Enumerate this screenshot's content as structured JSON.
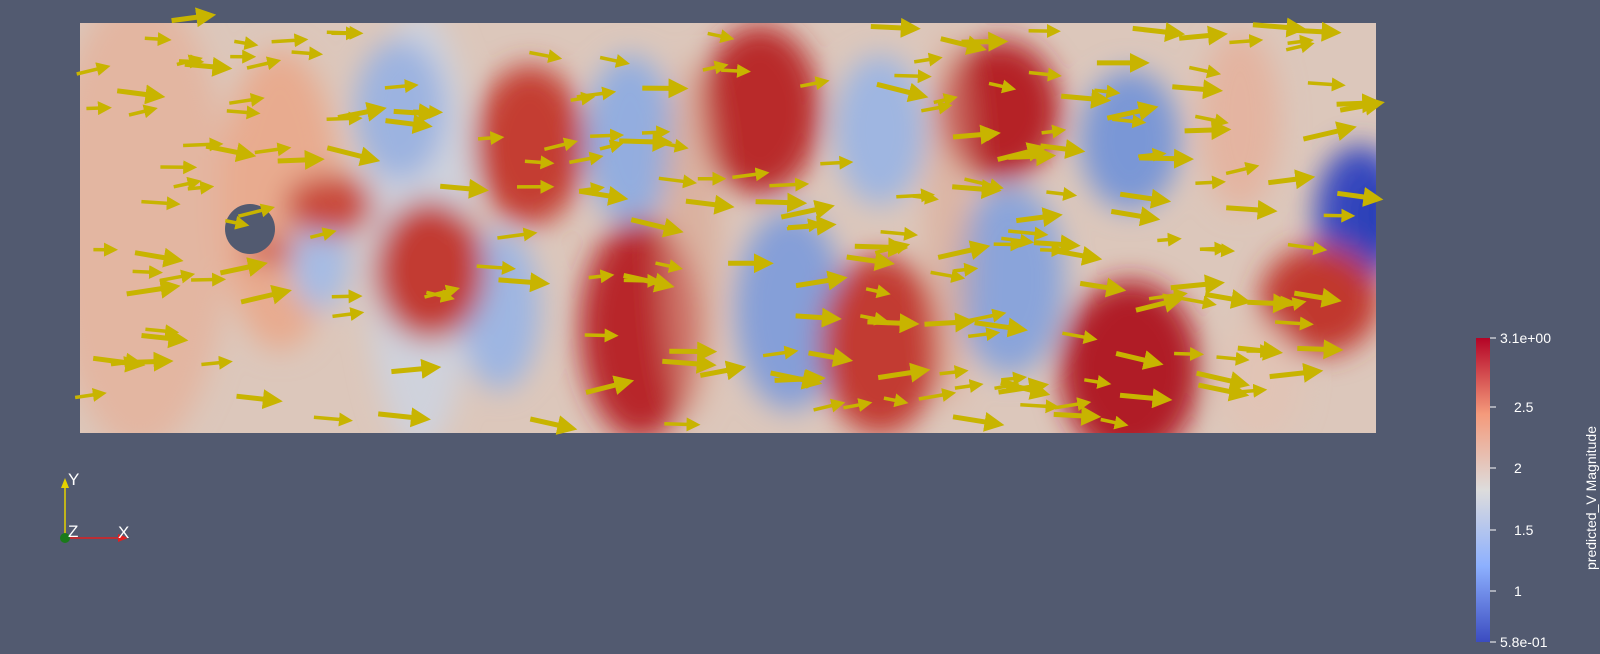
{
  "scalar_field": "predicted_V Magnitude",
  "colorbar": {
    "title": "predicted_V Magnitude",
    "max_label": "3.1e+00",
    "min_label": "5.8e-01",
    "ticks": [
      "2.5",
      "2",
      "1.5",
      "1"
    ],
    "range": [
      0.58,
      3.1
    ],
    "colors": {
      "high": "#b40426",
      "mid": "#dddcdc",
      "low": "#3b4cc0"
    }
  },
  "glyph_color": "#c8b400",
  "background_color": "#525a70",
  "obstacle": "cylinder",
  "orientation_axes": {
    "x": "X",
    "y": "Y",
    "z": "Z"
  }
}
